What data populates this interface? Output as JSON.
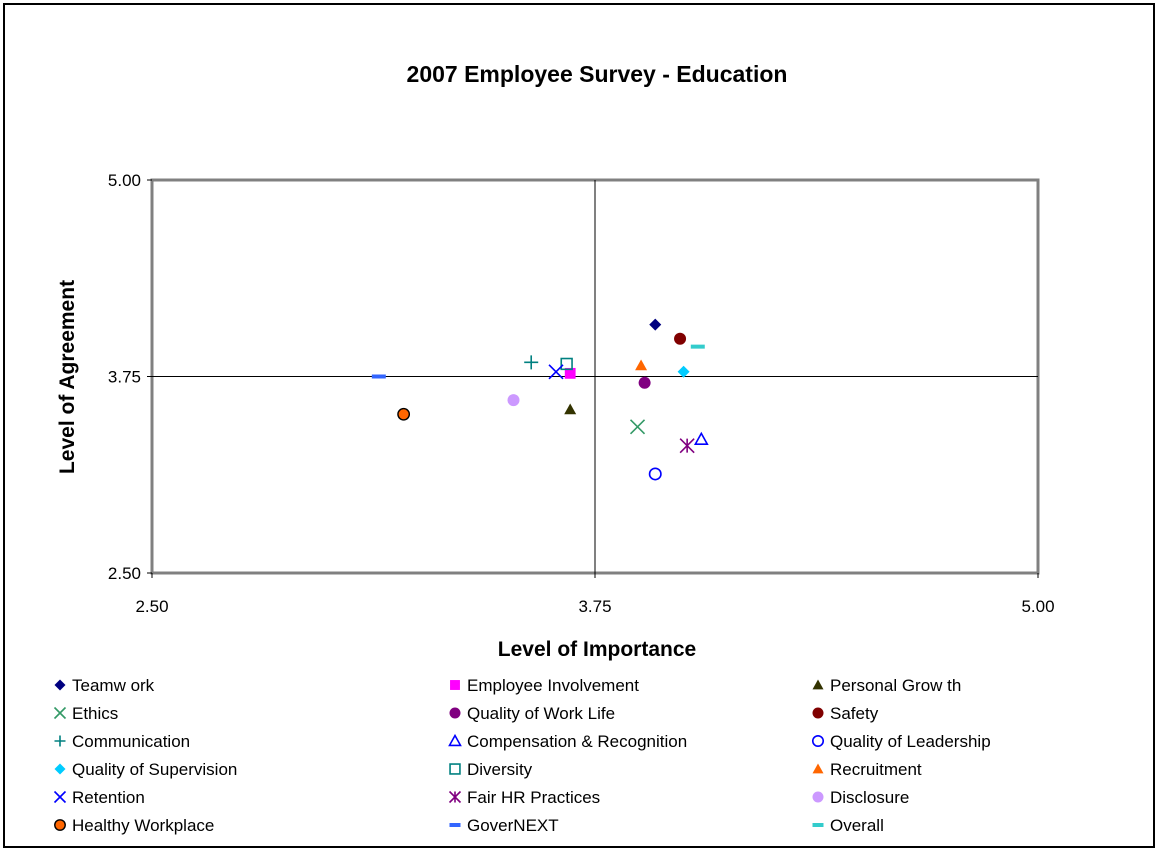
{
  "chart_data": {
    "type": "scatter",
    "title": "2007 Employee Survey - Education",
    "xlabel": "Level of Importance",
    "ylabel": "Level of Agreement",
    "xlim": [
      2.5,
      5.0
    ],
    "ylim": [
      2.5,
      5.0
    ],
    "xticks": [
      "2.50",
      "3.75",
      "5.00"
    ],
    "yticks": [
      "2.50",
      "3.75",
      "5.00"
    ],
    "reference_lines": {
      "x": 3.75,
      "y": 3.75
    },
    "grid": false,
    "legend_position": "bottom",
    "series": [
      {
        "name": "Teamw ork",
        "marker": "diamond",
        "color": "#000080",
        "x": 3.92,
        "y": 4.08
      },
      {
        "name": "Employee Involvement",
        "marker": "square",
        "color": "#ff00ff",
        "x": 3.68,
        "y": 3.77
      },
      {
        "name": "Personal Grow th",
        "marker": "triangle",
        "color": "#333300",
        "x": 3.68,
        "y": 3.54
      },
      {
        "name": "Ethics",
        "marker": "x",
        "color": "#339966",
        "x": 3.87,
        "y": 3.43
      },
      {
        "name": "Quality of Work Life",
        "marker": "circle",
        "color": "#800080",
        "x": 3.89,
        "y": 3.71
      },
      {
        "name": "Safety",
        "marker": "circle",
        "color": "#800000",
        "x": 3.99,
        "y": 3.99
      },
      {
        "name": "Communication",
        "marker": "plus",
        "color": "#008080",
        "x": 3.57,
        "y": 3.84
      },
      {
        "name": "Compensation & Recognition",
        "marker": "triangle-open",
        "color": "#0000ff",
        "x": 4.05,
        "y": 3.35
      },
      {
        "name": "Quality of Leadership",
        "marker": "circle-open",
        "color": "#0000ff",
        "x": 3.92,
        "y": 3.13
      },
      {
        "name": "Quality of Supervision",
        "marker": "diamond",
        "color": "#00ccff",
        "x": 4.0,
        "y": 3.78
      },
      {
        "name": "Diversity",
        "marker": "square-open",
        "color": "#008080",
        "x": 3.67,
        "y": 3.83
      },
      {
        "name": "Recruitment",
        "marker": "triangle",
        "color": "#ff6600",
        "x": 3.88,
        "y": 3.82
      },
      {
        "name": "Retention",
        "marker": "x",
        "color": "#0000ff",
        "x": 3.64,
        "y": 3.78
      },
      {
        "name": "Fair HR Practices",
        "marker": "asterisk",
        "color": "#800080",
        "x": 4.01,
        "y": 3.31
      },
      {
        "name": "Disclosure",
        "marker": "circle",
        "color": "#cc99ff",
        "x": 3.52,
        "y": 3.6
      },
      {
        "name": "Healthy Workplace",
        "marker": "circle-outlined",
        "color": "#ff6600",
        "x": 3.21,
        "y": 3.51
      },
      {
        "name": "GoverNEXT",
        "marker": "dash",
        "color": "#3366ff",
        "x": 3.14,
        "y": 3.75
      },
      {
        "name": "Overall",
        "marker": "dash",
        "color": "#33cccc",
        "x": 4.04,
        "y": 3.94
      }
    ]
  }
}
